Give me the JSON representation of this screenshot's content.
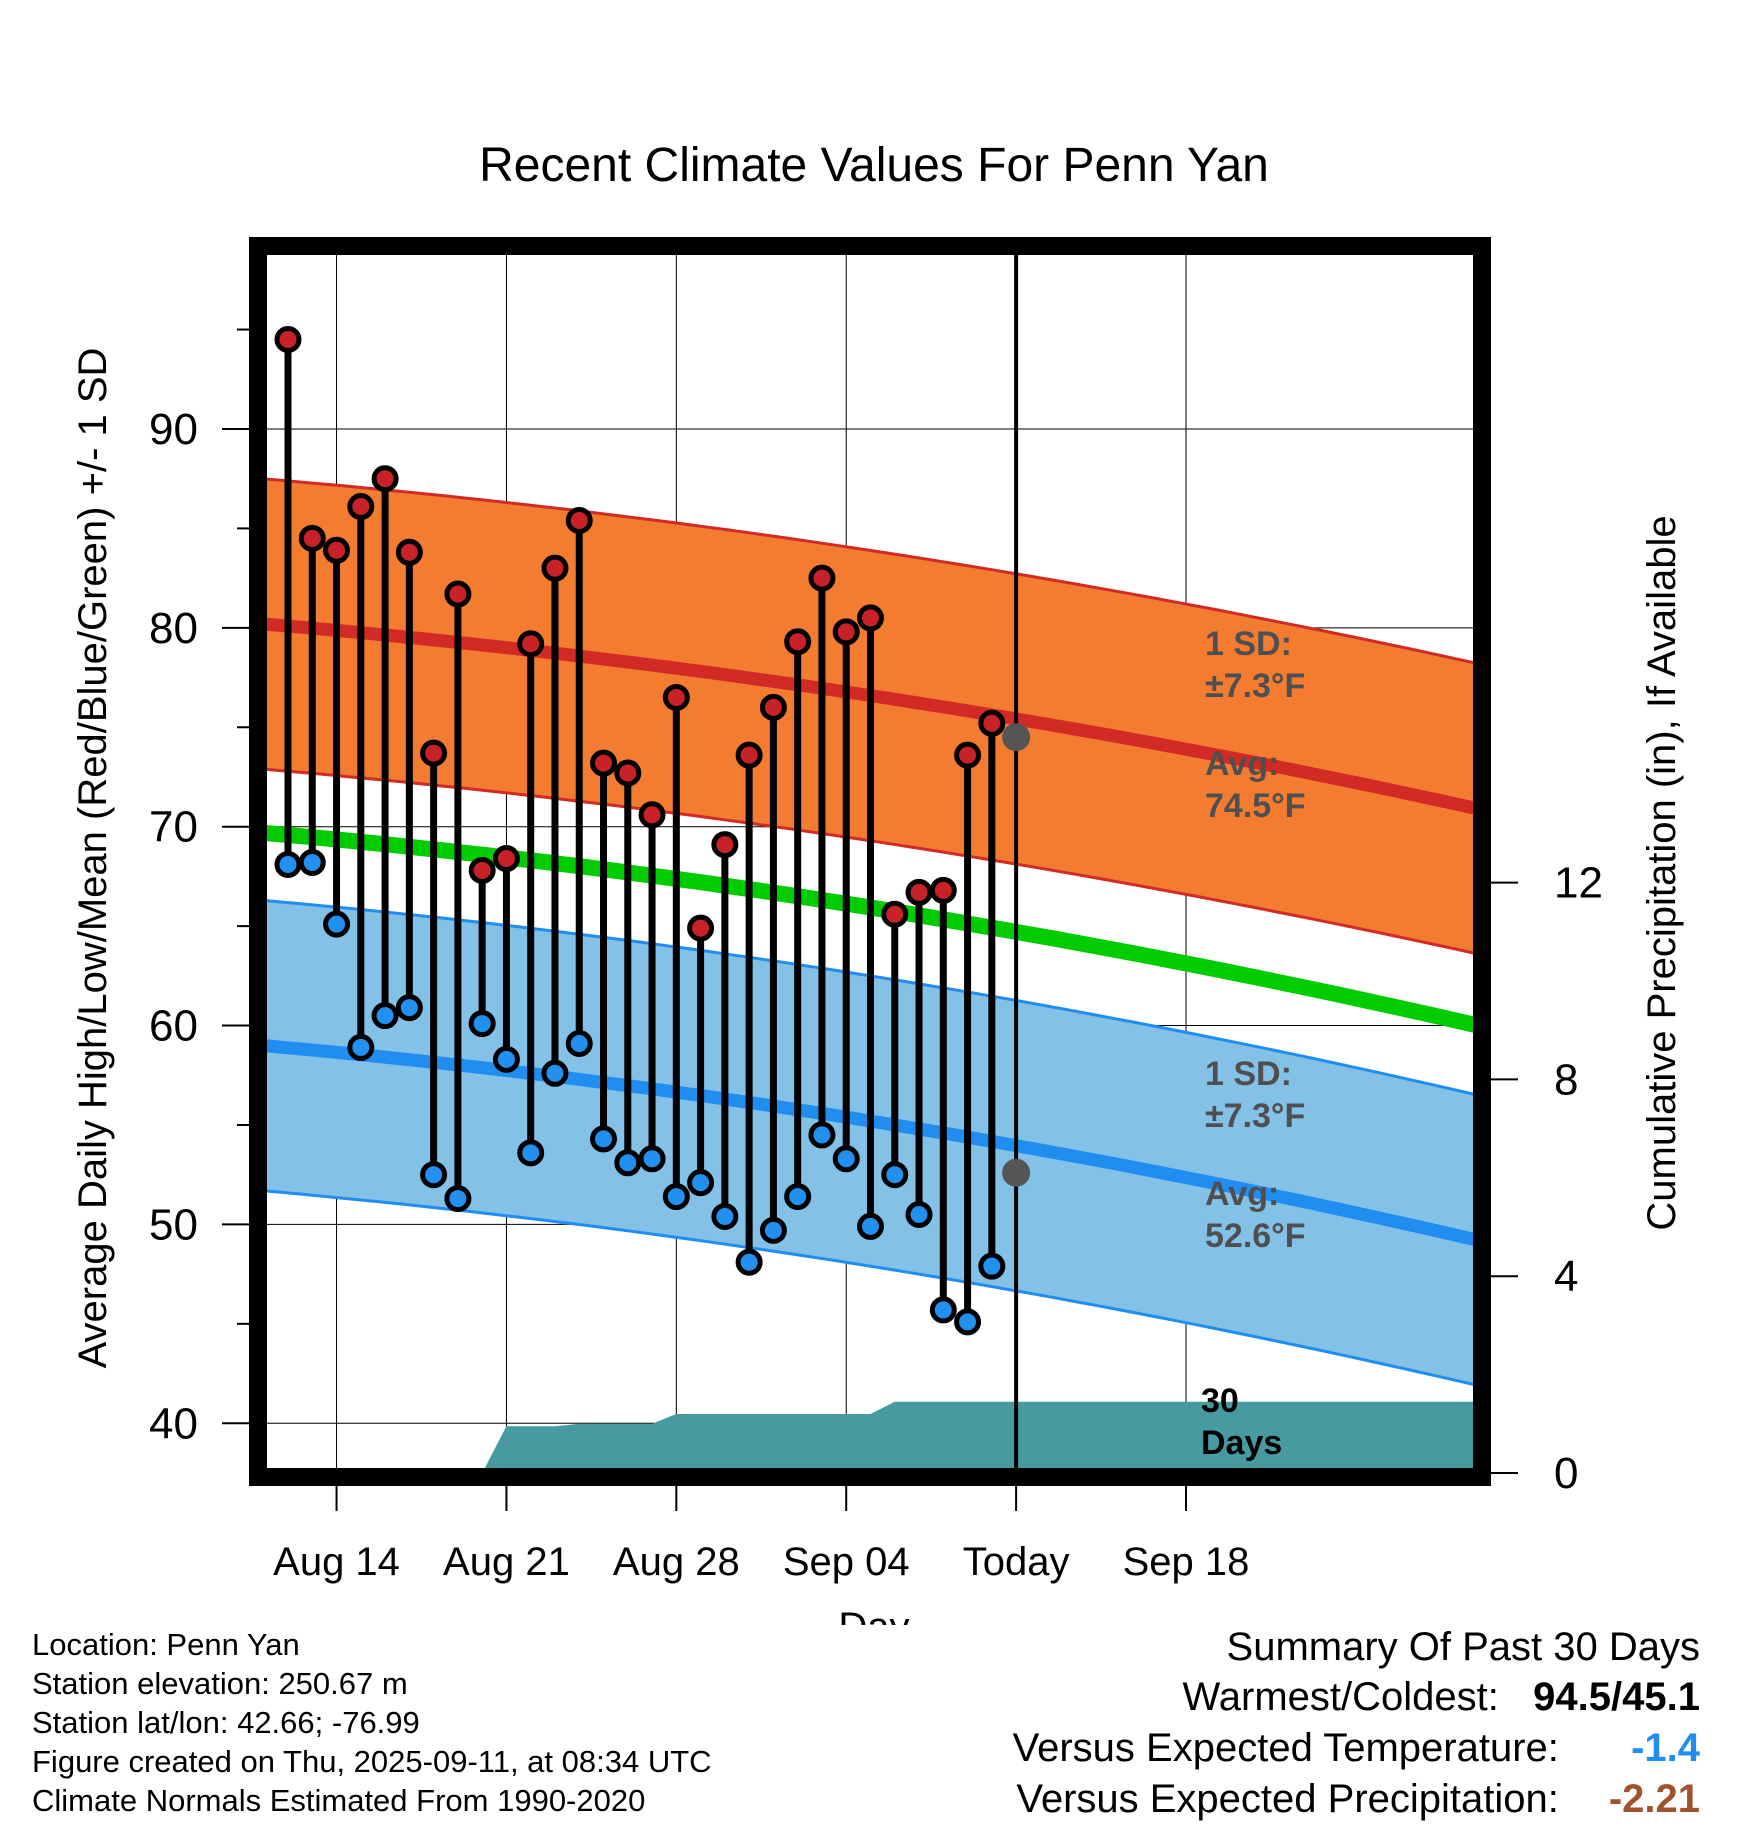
{
  "chart_data": {
    "type": "line",
    "title": "Recent Climate Values For Penn Yan",
    "xlabel": "Day",
    "ylabel": "Average Daily High/Low/Mean (Red/Blue/Green) +/- 1 SD",
    "y2label": "Cumulative Precipitation (in), If Available",
    "ylim": [
      37.5,
      99
    ],
    "y2lim": [
      0,
      24
    ],
    "xlim": [
      "2025-08-12",
      "2025-09-21"
    ],
    "yticks": [
      40,
      50,
      60,
      70,
      80,
      90
    ],
    "y2ticks": [
      0,
      4,
      8,
      12
    ],
    "xticks": [
      {
        "date": "2025-08-14",
        "label": "Aug 14"
      },
      {
        "date": "2025-08-21",
        "label": "Aug 21"
      },
      {
        "date": "2025-08-28",
        "label": "Aug 28"
      },
      {
        "date": "2025-09-04",
        "label": "Sep 04"
      },
      {
        "date": "2025-09-11",
        "label": "Today"
      },
      {
        "date": "2025-09-18",
        "label": "Sep 18"
      }
    ],
    "grid": true,
    "today": "2025-09-11",
    "daily": {
      "dates": [
        "2025-08-12",
        "2025-08-13",
        "2025-08-14",
        "2025-08-15",
        "2025-08-16",
        "2025-08-17",
        "2025-08-18",
        "2025-08-19",
        "2025-08-20",
        "2025-08-21",
        "2025-08-22",
        "2025-08-23",
        "2025-08-24",
        "2025-08-25",
        "2025-08-26",
        "2025-08-27",
        "2025-08-28",
        "2025-08-29",
        "2025-08-30",
        "2025-08-31",
        "2025-09-01",
        "2025-09-02",
        "2025-09-03",
        "2025-09-04",
        "2025-09-05",
        "2025-09-06",
        "2025-09-07",
        "2025-09-08",
        "2025-09-09",
        "2025-09-10"
      ],
      "high": [
        94.5,
        84.5,
        83.9,
        86.1,
        87.5,
        83.8,
        73.7,
        81.7,
        67.8,
        68.4,
        79.2,
        83.0,
        85.4,
        73.2,
        72.7,
        70.6,
        76.5,
        64.9,
        69.1,
        73.6,
        76.0,
        79.3,
        82.5,
        79.8,
        80.5,
        65.6,
        66.7,
        66.8,
        73.6,
        75.2
      ],
      "low": [
        68.1,
        68.2,
        65.1,
        58.9,
        60.5,
        60.9,
        52.5,
        51.3,
        60.1,
        58.3,
        53.6,
        57.6,
        59.1,
        54.3,
        53.1,
        53.3,
        51.4,
        52.1,
        50.4,
        48.1,
        49.7,
        51.4,
        54.5,
        53.3,
        49.9,
        52.5,
        50.5,
        45.7,
        45.1,
        47.9
      ]
    },
    "normal_high": {
      "start": 80.2,
      "end": 70.9,
      "sd": 7.3
    },
    "normal_low": {
      "start": 59.0,
      "end": 49.2,
      "sd": 7.3
    },
    "normal_mean": {
      "start": 69.7,
      "end": 60.0
    },
    "precipitation": {
      "x": [
        "2025-08-12",
        "2025-08-20",
        "2025-08-21",
        "2025-08-23",
        "2025-08-24",
        "2025-08-27",
        "2025-08-28",
        "2025-09-05",
        "2025-09-06",
        "2025-09-21"
      ],
      "y": [
        0,
        0,
        0.95,
        0.95,
        1.0,
        1.0,
        1.2,
        1.2,
        1.45,
        1.45
      ]
    },
    "annotations": {
      "high_sd": "1 SD:\n±7.3°F",
      "high_avg": "Avg:\n74.5°F",
      "low_sd": "1 SD:\n±7.3°F",
      "low_avg": "Avg:\n52.6°F",
      "days": "30\nDays",
      "high_avg_value": 74.5,
      "low_avg_value": 52.6
    },
    "colors": {
      "high_band": "#f47c30",
      "high_line": "#d22a24",
      "low_band": "#84c1e7",
      "low_line": "#1f8ef0",
      "mean_line": "#00cc00",
      "precip": "#479aa0",
      "high_dot": "#c82127",
      "low_dot": "#2190f0",
      "annotation": "#4f4f4f"
    }
  },
  "footer": {
    "location": "Location: Penn Yan",
    "elevation": "Station elevation: 250.67 m",
    "latlon": "Station lat/lon: 42.66; -76.99",
    "created": "Figure created on Thu, 2025-09-11, at 08:34 UTC",
    "normals": "Climate Normals Estimated From 1990-2020"
  },
  "summary": {
    "title": "Summary Of Past 30 Days",
    "warmest_label": "Warmest/Coldest:",
    "warmest_value": "94.5/45.1",
    "temp_label": "Versus Expected Temperature:",
    "temp_value": "-1.4",
    "temp_color": "#1f8ef0",
    "precip_label": "Versus Expected Precipitation:",
    "precip_value": "-2.21",
    "precip_color": "#a0522d"
  }
}
